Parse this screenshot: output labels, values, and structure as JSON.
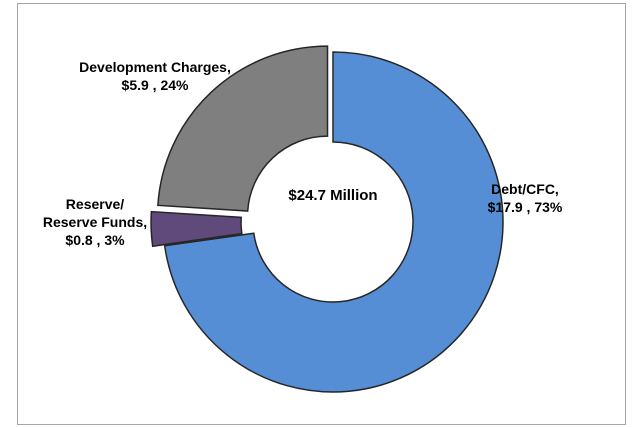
{
  "chart_data": {
    "type": "donut",
    "categories": [
      "Debt/CFC,",
      "Reserve/ Reserve Funds,",
      "Development Charges,"
    ],
    "values": [
      17.9,
      0.8,
      5.9
    ],
    "value_labels": [
      "$17.9 , 73%",
      "$0.8 , 3%",
      "$5.9 , 24%"
    ],
    "colors": [
      "#558ed5",
      "#604a7b",
      "#7f7f7f"
    ],
    "center_label": "$24.7 Million"
  }
}
